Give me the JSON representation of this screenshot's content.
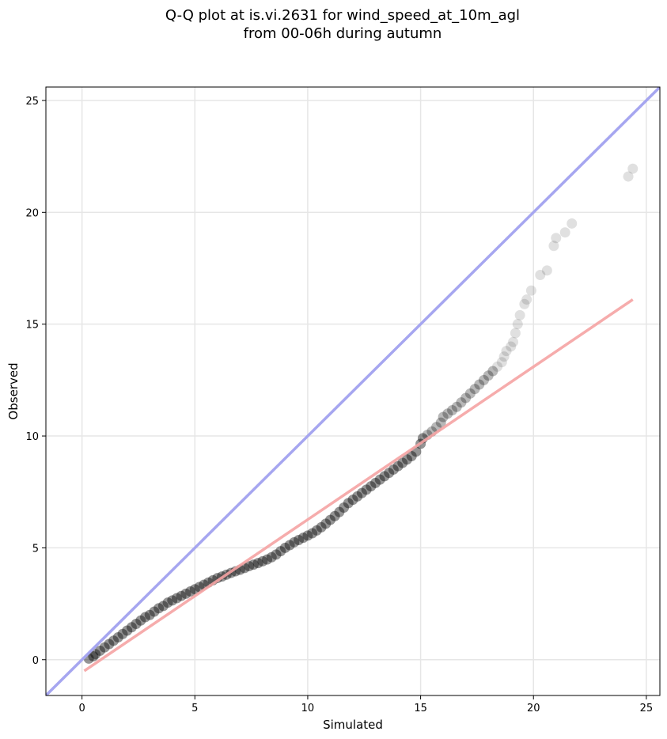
{
  "chart_data": {
    "type": "scatter",
    "title": "Q-Q plot at is.vi.2631 for wind_speed_at_10m_agl",
    "subtitle": "from 00-06h during autumn",
    "xlabel": "Simulated",
    "ylabel": "Observed",
    "xlim": [
      -1.6,
      25.6
    ],
    "ylim": [
      -1.6,
      25.6
    ],
    "xticks": [
      0,
      5,
      10,
      15,
      20,
      25
    ],
    "yticks": [
      0,
      5,
      10,
      15,
      20,
      25
    ],
    "grid": true,
    "colors": {
      "points": "#000000",
      "identity_line": "#a6a6f0",
      "fit_line": "#f5a3a3"
    },
    "identity_line": {
      "from": [
        -1.6,
        -1.6
      ],
      "to": [
        25.6,
        25.6
      ]
    },
    "fit_line": {
      "from": [
        0.1,
        -0.5
      ],
      "to": [
        24.4,
        16.1
      ]
    },
    "points": [
      [
        0.3,
        0.05
      ],
      [
        0.5,
        0.15
      ],
      [
        0.6,
        0.25
      ],
      [
        0.8,
        0.4
      ],
      [
        1.0,
        0.55
      ],
      [
        1.2,
        0.7
      ],
      [
        1.4,
        0.85
      ],
      [
        1.6,
        1.0
      ],
      [
        1.8,
        1.15
      ],
      [
        2.0,
        1.3
      ],
      [
        2.2,
        1.45
      ],
      [
        2.4,
        1.6
      ],
      [
        2.6,
        1.75
      ],
      [
        2.8,
        1.9
      ],
      [
        3.0,
        2.0
      ],
      [
        3.2,
        2.15
      ],
      [
        3.4,
        2.3
      ],
      [
        3.6,
        2.4
      ],
      [
        3.8,
        2.55
      ],
      [
        4.0,
        2.65
      ],
      [
        4.2,
        2.75
      ],
      [
        4.4,
        2.85
      ],
      [
        4.6,
        2.95
      ],
      [
        4.8,
        3.05
      ],
      [
        5.0,
        3.15
      ],
      [
        5.2,
        3.25
      ],
      [
        5.4,
        3.35
      ],
      [
        5.6,
        3.45
      ],
      [
        5.8,
        3.55
      ],
      [
        6.0,
        3.65
      ],
      [
        6.2,
        3.72
      ],
      [
        6.4,
        3.8
      ],
      [
        6.6,
        3.88
      ],
      [
        6.8,
        3.95
      ],
      [
        7.0,
        4.02
      ],
      [
        7.2,
        4.1
      ],
      [
        7.4,
        4.18
      ],
      [
        7.6,
        4.25
      ],
      [
        7.8,
        4.32
      ],
      [
        8.0,
        4.4
      ],
      [
        8.2,
        4.48
      ],
      [
        8.4,
        4.58
      ],
      [
        8.6,
        4.7
      ],
      [
        8.8,
        4.85
      ],
      [
        9.0,
        5.0
      ],
      [
        9.2,
        5.12
      ],
      [
        9.4,
        5.25
      ],
      [
        9.6,
        5.35
      ],
      [
        9.8,
        5.45
      ],
      [
        10.0,
        5.55
      ],
      [
        10.2,
        5.65
      ],
      [
        10.4,
        5.78
      ],
      [
        10.6,
        5.92
      ],
      [
        10.8,
        6.08
      ],
      [
        11.0,
        6.25
      ],
      [
        11.2,
        6.42
      ],
      [
        11.4,
        6.6
      ],
      [
        11.6,
        6.8
      ],
      [
        11.8,
        7.0
      ],
      [
        12.0,
        7.15
      ],
      [
        12.2,
        7.3
      ],
      [
        12.4,
        7.45
      ],
      [
        12.6,
        7.6
      ],
      [
        12.8,
        7.75
      ],
      [
        13.0,
        7.9
      ],
      [
        13.2,
        8.05
      ],
      [
        13.4,
        8.2
      ],
      [
        13.6,
        8.35
      ],
      [
        13.8,
        8.5
      ],
      [
        14.0,
        8.65
      ],
      [
        14.2,
        8.8
      ],
      [
        14.4,
        8.95
      ],
      [
        14.6,
        9.1
      ],
      [
        14.8,
        9.3
      ],
      [
        15.0,
        9.65
      ],
      [
        15.1,
        9.9
      ],
      [
        15.3,
        10.05
      ],
      [
        15.5,
        10.2
      ],
      [
        15.7,
        10.4
      ],
      [
        15.9,
        10.6
      ],
      [
        16.0,
        10.85
      ],
      [
        16.2,
        11.0
      ],
      [
        16.4,
        11.15
      ],
      [
        16.6,
        11.3
      ],
      [
        16.8,
        11.5
      ],
      [
        17.0,
        11.7
      ],
      [
        17.2,
        11.9
      ],
      [
        17.4,
        12.1
      ],
      [
        17.6,
        12.3
      ],
      [
        17.8,
        12.5
      ],
      [
        18.0,
        12.7
      ],
      [
        18.2,
        12.9
      ],
      [
        18.4,
        13.1
      ],
      [
        18.6,
        13.3
      ],
      [
        18.7,
        13.55
      ],
      [
        18.8,
        13.8
      ],
      [
        19.0,
        14.0
      ],
      [
        19.1,
        14.2
      ],
      [
        19.2,
        14.6
      ],
      [
        19.3,
        15.0
      ],
      [
        19.4,
        15.4
      ],
      [
        19.6,
        15.9
      ],
      [
        19.7,
        16.1
      ],
      [
        19.9,
        16.5
      ],
      [
        20.3,
        17.2
      ],
      [
        20.6,
        17.4
      ],
      [
        20.9,
        18.5
      ],
      [
        21.0,
        18.85
      ],
      [
        21.4,
        19.1
      ],
      [
        21.7,
        19.5
      ],
      [
        24.2,
        21.6
      ],
      [
        24.4,
        21.95
      ]
    ]
  }
}
